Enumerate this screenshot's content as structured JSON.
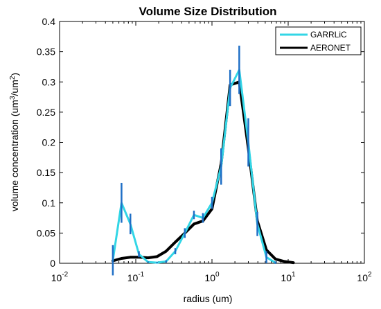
{
  "chart_data": {
    "type": "line",
    "title": "Volume Size Distribution",
    "xlabel": "radius (um)",
    "ylabel_main": "volume concentration  (um",
    "ylabel_sup1": "3",
    "ylabel_mid": "/um",
    "ylabel_sup2": "2",
    "ylabel_end": ")",
    "xscale": "log",
    "xlim": [
      0.01,
      100
    ],
    "ylim": [
      0,
      0.4
    ],
    "x_ticks": [
      {
        "value": 0.01,
        "base": "10",
        "exp": "-2"
      },
      {
        "value": 0.1,
        "base": "10",
        "exp": "-1"
      },
      {
        "value": 1,
        "base": "10",
        "exp": "0"
      },
      {
        "value": 10,
        "base": "10",
        "exp": "1"
      },
      {
        "value": 100,
        "base": "10",
        "exp": "2"
      }
    ],
    "y_ticks": [
      "0",
      "0.05",
      "0.1",
      "0.15",
      "0.2",
      "0.25",
      "0.3",
      "0.35",
      "0.4"
    ],
    "y_tick_values": [
      0,
      0.05,
      0.1,
      0.15,
      0.2,
      0.25,
      0.3,
      0.35,
      0.4
    ],
    "legend_position": "top-right",
    "grid": false,
    "series": [
      {
        "name": "GARRLiC",
        "color": "#33d6e6",
        "x": [
          0.05,
          0.065,
          0.085,
          0.11,
          0.145,
          0.19,
          0.25,
          0.33,
          0.44,
          0.58,
          0.76,
          1.0,
          1.32,
          1.73,
          2.28,
          3.0,
          3.94,
          5.18,
          6.8
        ],
        "y": [
          0.005,
          0.1,
          0.065,
          0.015,
          0.002,
          0.001,
          0.003,
          0.02,
          0.05,
          0.08,
          0.075,
          0.1,
          0.16,
          0.29,
          0.32,
          0.2,
          0.065,
          0.01,
          0.001
        ],
        "err": [
          0.025,
          0.033,
          0.017,
          0.005,
          0.001,
          0.001,
          0.002,
          0.005,
          0.008,
          0.007,
          0.008,
          0.01,
          0.03,
          0.03,
          0.04,
          0.04,
          0.02,
          0.01,
          0.002
        ]
      },
      {
        "name": "AERONET",
        "color": "#000000",
        "x": [
          0.05,
          0.065,
          0.085,
          0.11,
          0.145,
          0.19,
          0.25,
          0.33,
          0.44,
          0.58,
          0.76,
          1.0,
          1.32,
          1.73,
          2.28,
          3.0,
          3.94,
          5.18,
          6.8,
          8.9,
          11.7
        ],
        "y": [
          0.004,
          0.008,
          0.01,
          0.01,
          0.009,
          0.011,
          0.02,
          0.035,
          0.05,
          0.065,
          0.07,
          0.09,
          0.165,
          0.295,
          0.3,
          0.19,
          0.07,
          0.022,
          0.007,
          0.003,
          0.001
        ]
      }
    ]
  }
}
